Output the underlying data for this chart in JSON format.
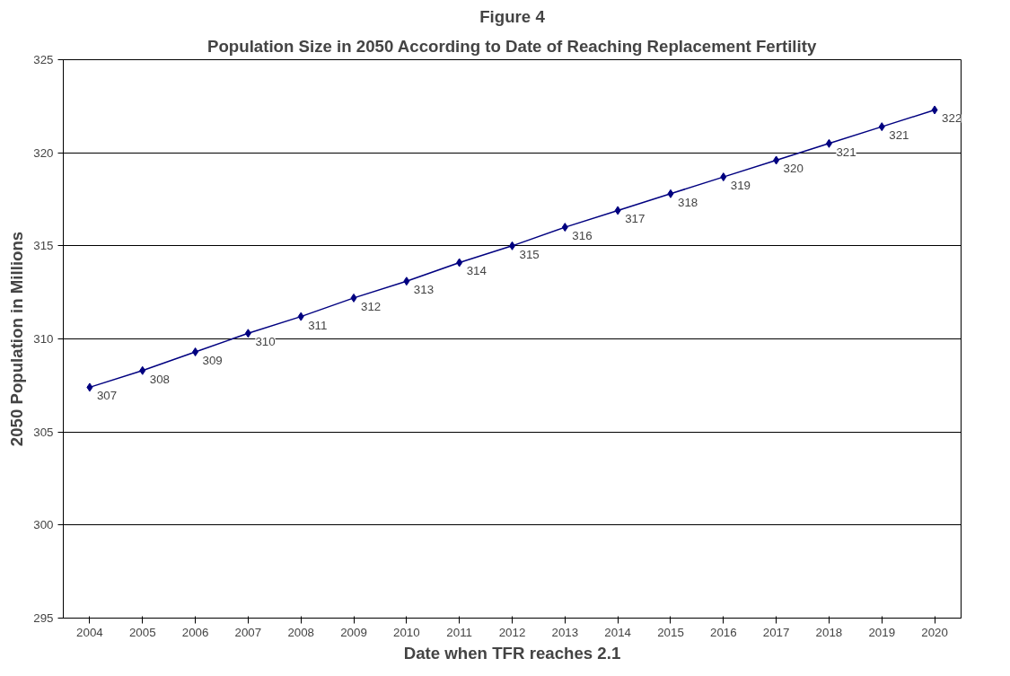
{
  "chart_data": {
    "type": "line",
    "title": "Figure 4",
    "subtitle": "Population Size in 2050 According to Date of Reaching Replacement Fertility",
    "xlabel": "Date when TFR reaches 2.1",
    "ylabel": "2050 Population in Millions",
    "categories": [
      "2004",
      "2005",
      "2006",
      "2007",
      "2008",
      "2009",
      "2010",
      "2011",
      "2012",
      "2013",
      "2014",
      "2015",
      "2016",
      "2017",
      "2018",
      "2019",
      "2020"
    ],
    "series": [
      {
        "color": "#000080",
        "values": [
          307.4,
          308.3,
          309.3,
          310.3,
          311.2,
          312.2,
          313.1,
          314.1,
          315.0,
          316.0,
          316.9,
          317.8,
          318.7,
          319.6,
          320.5,
          321.4,
          322.3
        ],
        "value_labels": [
          "307",
          "308",
          "309",
          "310",
          "311",
          "312",
          "313",
          "314",
          "315",
          "316",
          "317",
          "318",
          "319",
          "320",
          "321",
          "321",
          "322"
        ]
      }
    ],
    "ylim": [
      295,
      325
    ],
    "yticks": [
      295,
      300,
      305,
      310,
      315,
      320,
      325
    ],
    "grid": "y",
    "marker": "diamond",
    "line_style": "solid"
  }
}
